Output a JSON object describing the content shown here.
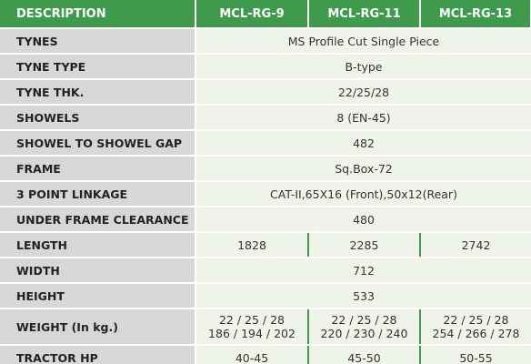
{
  "table": {
    "header": [
      "DESCRIPTION",
      "MCL-RG-9",
      "MCL-RG-11",
      "MCL-RG-13"
    ],
    "rows": [
      {
        "label": "TYNES",
        "cells": [
          "MS Profile Cut Single Piece"
        ]
      },
      {
        "label": "TYNE TYPE",
        "cells": [
          "B-type"
        ]
      },
      {
        "label": "TYNE THK.",
        "cells": [
          "22/25/28"
        ]
      },
      {
        "label": "SHOWELS",
        "cells": [
          "8 (EN-45)"
        ]
      },
      {
        "label": "SHOWEL TO SHOWEL GAP",
        "cells": [
          "482"
        ]
      },
      {
        "label": "FRAME",
        "cells": [
          "Sq.Box-72"
        ]
      },
      {
        "label": "3 POINT LINKAGE",
        "cells": [
          "CAT-II,65X16 (Front),50x12(Rear)"
        ]
      },
      {
        "label": "UNDER FRAME CLEARANCE",
        "cells": [
          "480"
        ]
      },
      {
        "label": "LENGTH",
        "cells": [
          "1828",
          "2285",
          "2742"
        ]
      },
      {
        "label": "WIDTH",
        "cells": [
          "712"
        ]
      },
      {
        "label": "HEIGHT",
        "cells": [
          "533"
        ]
      },
      {
        "label": "WEIGHT (In kg.)",
        "cells": [
          [
            "22 / 25 / 28",
            "186 / 194 / 202"
          ],
          [
            "22 / 25 / 28",
            "220 / 230 / 240"
          ],
          [
            "22 / 25 / 28",
            "254 / 266 / 278"
          ]
        ]
      },
      {
        "label": "TRACTOR HP",
        "cells": [
          "40-45",
          "45-50",
          "50-55"
        ]
      }
    ]
  }
}
